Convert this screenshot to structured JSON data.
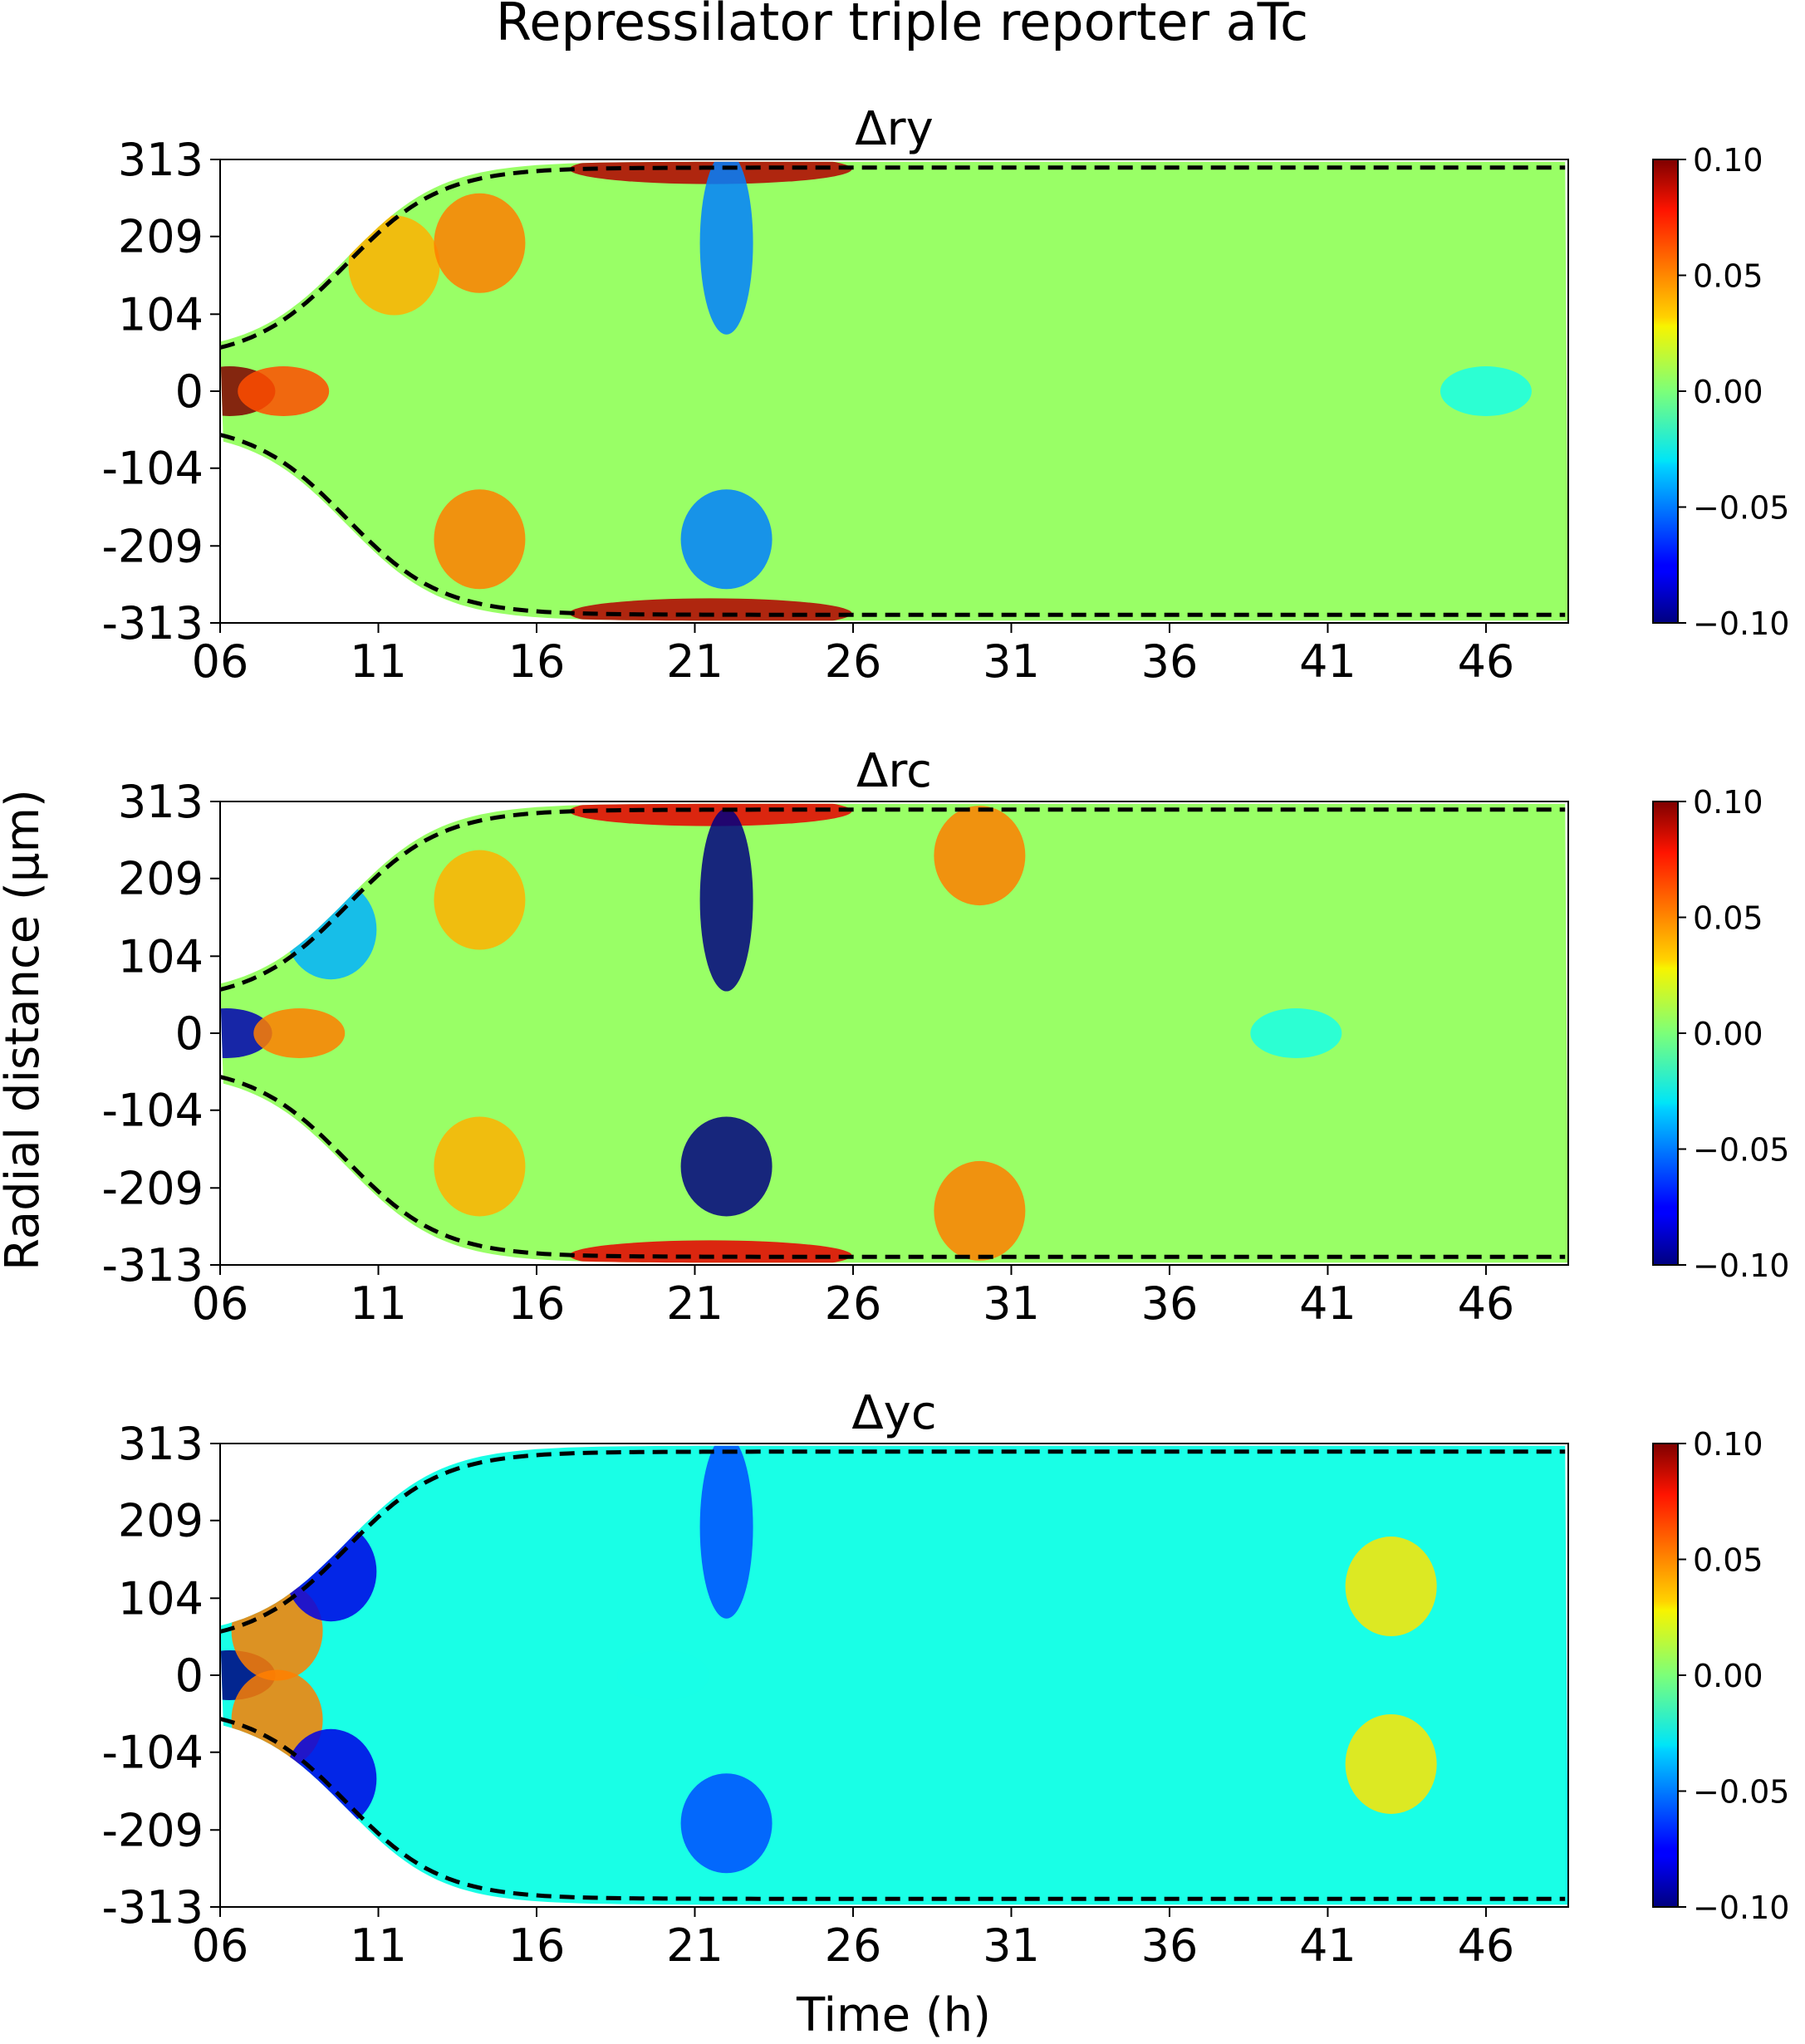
{
  "figure": {
    "title": "Repressilator triple reporter aTc",
    "ylabel": "Radial distance (μm)",
    "xlabel": "Time (h)"
  },
  "chart_data": [
    {
      "type": "heatmap",
      "title": "Δry",
      "x_ticks": [
        "06",
        "11",
        "16",
        "21",
        "26",
        "31",
        "36",
        "41",
        "46"
      ],
      "x_tick_values": [
        6,
        11,
        16,
        21,
        26,
        31,
        36,
        41,
        46
      ],
      "xlim": [
        6,
        48.6
      ],
      "y_ticks": [
        "313",
        "209",
        "104",
        "0",
        "-104",
        "-209",
        "-313"
      ],
      "y_tick_values": [
        313,
        209,
        104,
        0,
        -104,
        -209,
        -313
      ],
      "ylim": [
        -313,
        313
      ],
      "colorbar": {
        "range": [
          -0.1,
          0.1
        ],
        "ticks": [
          "0.10",
          "0.05",
          "0.00",
          "−0.05",
          "−0.10"
        ],
        "tick_values": [
          0.1,
          0.05,
          0.0,
          -0.05,
          -0.1
        ],
        "colormap": "jet"
      },
      "boundary_style": "black dashed",
      "features": [
        {
          "t": 6.3,
          "r": 0,
          "value": 0.1,
          "note": "dark red core at colony center"
        },
        {
          "t": 8,
          "r": 0,
          "value": 0.06,
          "note": "orange checkered band near center"
        },
        {
          "t": 11.5,
          "r": 170,
          "value": 0.04
        },
        {
          "t": 14.2,
          "r": 200,
          "value": 0.05
        },
        {
          "t": 14.2,
          "r": -200,
          "value": 0.05
        },
        {
          "t": 21.5,
          "r": 300,
          "value": 0.09,
          "note": "dark red edge band"
        },
        {
          "t": 21.5,
          "r": -300,
          "value": 0.09
        },
        {
          "t": 22,
          "r": 200,
          "value": -0.05,
          "note": "blue vertical streak"
        },
        {
          "t": 22,
          "r": -200,
          "value": -0.05
        },
        {
          "t": 46,
          "r": 0,
          "value": -0.02,
          "note": "light cyan interior late"
        }
      ]
    },
    {
      "type": "heatmap",
      "title": "Δrc",
      "x_ticks": [
        "06",
        "11",
        "16",
        "21",
        "26",
        "31",
        "36",
        "41",
        "46"
      ],
      "x_tick_values": [
        6,
        11,
        16,
        21,
        26,
        31,
        36,
        41,
        46
      ],
      "xlim": [
        6,
        48.6
      ],
      "y_ticks": [
        "313",
        "209",
        "104",
        "0",
        "-104",
        "-209",
        "-313"
      ],
      "y_tick_values": [
        313,
        209,
        104,
        0,
        -104,
        -209,
        -313
      ],
      "ylim": [
        -313,
        313
      ],
      "colorbar": {
        "range": [
          -0.1,
          0.1
        ],
        "ticks": [
          "0.10",
          "0.05",
          "0.00",
          "−0.05",
          "−0.10"
        ],
        "tick_values": [
          0.1,
          0.05,
          0.0,
          -0.05,
          -0.1
        ],
        "colormap": "jet"
      },
      "boundary_style": "black dashed",
      "features": [
        {
          "t": 6.2,
          "r": 0,
          "value": -0.09,
          "note": "dark blue core at colony center"
        },
        {
          "t": 8.5,
          "r": 0,
          "value": 0.05,
          "note": "orange checkered band"
        },
        {
          "t": 9.5,
          "r": 140,
          "value": -0.04
        },
        {
          "t": 14.2,
          "r": 180,
          "value": 0.04
        },
        {
          "t": 14.2,
          "r": -180,
          "value": 0.04
        },
        {
          "t": 21.5,
          "r": 300,
          "value": 0.08,
          "note": "red edge band"
        },
        {
          "t": 21.5,
          "r": -300,
          "value": 0.08
        },
        {
          "t": 22,
          "r": 180,
          "value": -0.1,
          "note": "dark blue vertical streak"
        },
        {
          "t": 22,
          "r": -180,
          "value": -0.1
        },
        {
          "t": 30,
          "r": 240,
          "value": 0.05
        },
        {
          "t": 30,
          "r": -240,
          "value": 0.05
        },
        {
          "t": 40,
          "r": 0,
          "value": -0.02
        }
      ]
    },
    {
      "type": "heatmap",
      "title": "Δyc",
      "x_ticks": [
        "06",
        "11",
        "16",
        "21",
        "26",
        "31",
        "36",
        "41",
        "46"
      ],
      "x_tick_values": [
        6,
        11,
        16,
        21,
        26,
        31,
        36,
        41,
        46
      ],
      "xlim": [
        6,
        48.6
      ],
      "y_ticks": [
        "313",
        "209",
        "104",
        "0",
        "-104",
        "-209",
        "-313"
      ],
      "y_tick_values": [
        313,
        209,
        104,
        0,
        -104,
        -209,
        -313
      ],
      "ylim": [
        -313,
        313
      ],
      "colorbar": {
        "range": [
          -0.1,
          0.1
        ],
        "ticks": [
          "0.10",
          "0.05",
          "0.00",
          "−0.05",
          "−0.10"
        ],
        "tick_values": [
          0.1,
          0.05,
          0.0,
          -0.05,
          -0.1
        ],
        "colormap": "jet"
      },
      "boundary_style": "black dashed",
      "features": [
        {
          "t": 6.3,
          "r": 0,
          "value": -0.1,
          "note": "dark blue core at colony center"
        },
        {
          "t": 7.8,
          "r": 60,
          "value": 0.05
        },
        {
          "t": 7.8,
          "r": -60,
          "value": 0.05
        },
        {
          "t": 9.5,
          "r": 140,
          "value": -0.08
        },
        {
          "t": 9.5,
          "r": -140,
          "value": -0.08
        },
        {
          "t": 22,
          "r": 200,
          "value": -0.06,
          "note": "blue vertical streak"
        },
        {
          "t": 22,
          "r": -200,
          "value": -0.06
        },
        {
          "t": 43,
          "r": 120,
          "value": 0.03
        },
        {
          "t": 43,
          "r": -120,
          "value": 0.03
        },
        {
          "t": 20,
          "r": 0,
          "value": -0.02,
          "note": "cyan interior"
        }
      ]
    }
  ]
}
